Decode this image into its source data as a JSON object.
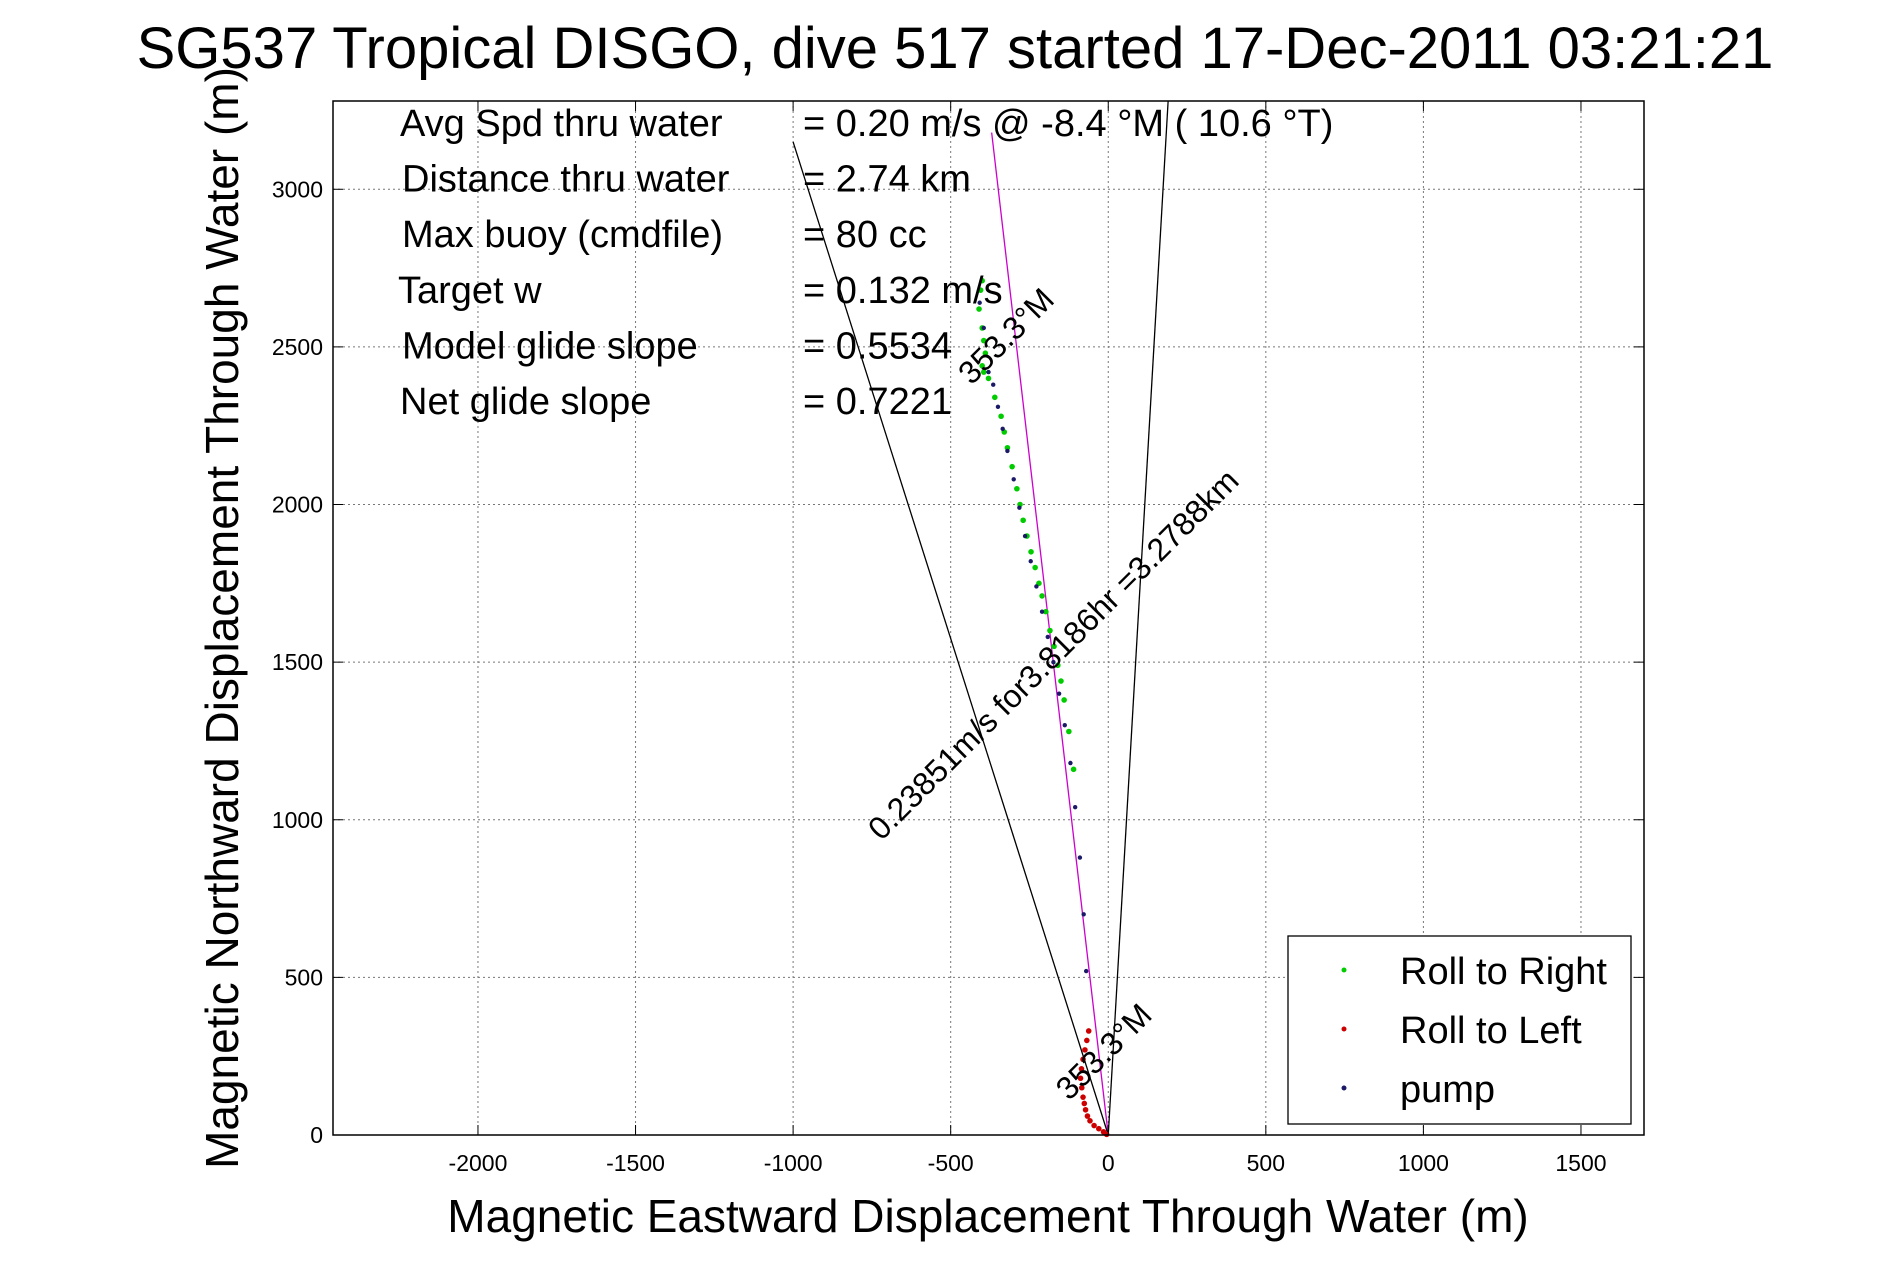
{
  "chart_data": {
    "type": "scatter",
    "title": "SG537 Tropical DISGO, dive 517 started 17-Dec-2011 03:21:21",
    "xlabel": "Magnetic Eastward Displacement Through Water (m)",
    "ylabel": "Magnetic Northward Displacement Through Water (m)",
    "xlim": [
      -2460,
      1700
    ],
    "ylim": [
      0,
      3280
    ],
    "xticks": [
      -2000,
      -1500,
      -1000,
      -500,
      0,
      500,
      1000,
      1500
    ],
    "yticks": [
      0,
      500,
      1000,
      1500,
      2000,
      2500,
      3000
    ],
    "grid": true,
    "legend_position": "bottom-right",
    "info_lines": [
      {
        "label": "Avg Spd thru water",
        "value": "=  0.20 m/s @  -8.4 °M ( 10.6 °T)"
      },
      {
        "label": "Distance thru water",
        "value": "=  2.74 km"
      },
      {
        "label": "Max buoy (cmdfile)",
        "value": "= 80 cc"
      },
      {
        "label": "Target w",
        "value": "= 0.132 m/s"
      },
      {
        "label": "Model glide slope",
        "value": "= 0.5534"
      },
      {
        "label": "Net glide slope",
        "value": "= 0.7221"
      }
    ],
    "annotations": [
      {
        "text": "353.3°M",
        "x": -300,
        "y": 2510
      },
      {
        "text": "0.23851m/s for3.8186hr =3.2788km",
        "x": -150,
        "y": 1500
      },
      {
        "text": "353.3°M",
        "x": 10,
        "y": 240
      }
    ],
    "lines": [
      {
        "name": "heading",
        "color": "#cc00cc",
        "x": [
          0,
          -370
        ],
        "y": [
          0,
          3180
        ]
      },
      {
        "name": "cone-left",
        "color": "#000000",
        "x": [
          0,
          -1000
        ],
        "y": [
          0,
          3150
        ]
      },
      {
        "name": "cone-right",
        "color": "#000000",
        "x": [
          0,
          190
        ],
        "y": [
          0,
          3280
        ]
      }
    ],
    "series": [
      {
        "name": "Roll to Right",
        "color": "#00cc00",
        "x": [
          -400,
          -405,
          -410,
          -400,
          -395,
          -390,
          -400,
          -395,
          -380,
          -360,
          -340,
          -330,
          -320,
          -305,
          -290,
          -280,
          -270,
          -258,
          -245,
          -232,
          -220,
          -210,
          -198,
          -185,
          -172,
          -160,
          -150,
          -140,
          -125,
          -110
        ],
        "y": [
          2710,
          2680,
          2620,
          2560,
          2520,
          2480,
          2440,
          2420,
          2400,
          2340,
          2280,
          2230,
          2180,
          2120,
          2050,
          2000,
          1950,
          1900,
          1850,
          1800,
          1750,
          1710,
          1660,
          1600,
          1550,
          1490,
          1440,
          1380,
          1280,
          1160
        ]
      },
      {
        "name": "Roll to Left",
        "color": "#cc0000",
        "x": [
          -62,
          -68,
          -74,
          -80,
          -85,
          -88,
          -84,
          -80,
          -76,
          -72,
          -66,
          -58,
          -45,
          -30,
          -15,
          -5
        ],
        "y": [
          330,
          300,
          270,
          240,
          210,
          180,
          150,
          120,
          100,
          80,
          60,
          45,
          30,
          20,
          10,
          2
        ]
      },
      {
        "name": "pump",
        "color": "#1a1a66",
        "x": [
          -408,
          -395,
          -380,
          -365,
          -350,
          -335,
          -320,
          -300,
          -282,
          -264,
          -246,
          -228,
          -210,
          -192,
          -174,
          -156,
          -138,
          -120,
          -105,
          -90,
          -78,
          -70
        ],
        "y": [
          2640,
          2560,
          2420,
          2380,
          2310,
          2240,
          2170,
          2080,
          1990,
          1900,
          1820,
          1740,
          1660,
          1580,
          1500,
          1400,
          1300,
          1180,
          1040,
          880,
          700,
          520
        ]
      }
    ]
  }
}
